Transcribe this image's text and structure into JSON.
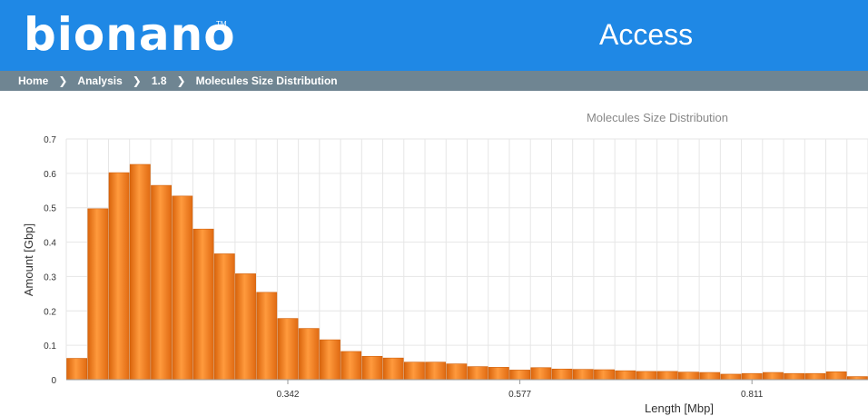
{
  "header": {
    "logo_text": "bionano",
    "logo_tm": "TM",
    "app_title": "Access",
    "brand_color": "#1f88e5"
  },
  "breadcrumb": {
    "items": [
      "Home",
      "Analysis",
      "1.8",
      "Molecules Size Distribution"
    ],
    "separator_icon": "chevron-right-icon"
  },
  "chart_data": {
    "type": "bar",
    "title": "Molecules Size Distribution",
    "xlabel": "Length [Mbp]",
    "ylabel": "Amount [Gbp]",
    "bar_color": "#f07f1f",
    "grid": true,
    "legend": "none",
    "ylim": [
      0,
      0.7
    ],
    "yticks": [
      "0",
      "0.1",
      "0.2",
      "0.3",
      "0.4",
      "0.5",
      "0.6",
      "0.7"
    ],
    "xticks": [
      {
        "label": "0.342",
        "bin": 10.5
      },
      {
        "label": "0.577",
        "bin": 21.5
      },
      {
        "label": "0.811",
        "bin": 32.5
      }
    ],
    "values": [
      0.062,
      0.497,
      0.602,
      0.626,
      0.565,
      0.534,
      0.438,
      0.366,
      0.308,
      0.254,
      0.178,
      0.149,
      0.116,
      0.082,
      0.068,
      0.063,
      0.051,
      0.051,
      0.046,
      0.038,
      0.036,
      0.028,
      0.035,
      0.031,
      0.03,
      0.029,
      0.026,
      0.024,
      0.024,
      0.022,
      0.021,
      0.016,
      0.018,
      0.021,
      0.018,
      0.018,
      0.023,
      0.009
    ]
  }
}
